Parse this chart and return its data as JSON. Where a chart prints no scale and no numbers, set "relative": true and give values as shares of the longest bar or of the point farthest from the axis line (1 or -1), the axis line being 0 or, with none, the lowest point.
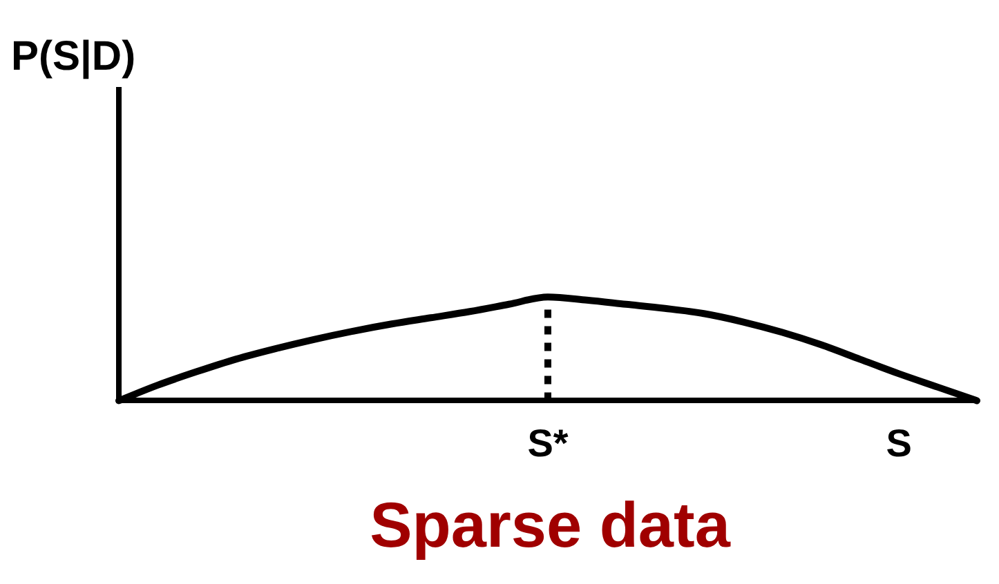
{
  "chart_data": {
    "type": "line",
    "title": "Sparse data",
    "annotations": [
      "P(S|D)"
    ],
    "relative": true,
    "categories": [
      null,
      null,
      null,
      null,
      null,
      null,
      null,
      null,
      null,
      null,
      null,
      "S*",
      null,
      null,
      null,
      null,
      null,
      null,
      null,
      null,
      "S",
      null,
      null
    ],
    "series": [
      {
        "color": "#000000",
        "values": [
          0,
          0.15,
          0.28,
          0.4,
          0.5,
          0.59,
          0.67,
          0.74,
          0.8,
          0.86,
          0.93,
          1,
          0.97,
          0.93,
          0.89,
          0.84,
          0.76,
          0.66,
          0.54,
          0.4,
          0.26,
          0.13,
          0
        ]
      }
    ],
    "ref_lines": [
      {
        "axis": "x",
        "value": "S*",
        "line_style": "dotted",
        "color": "#000000"
      }
    ],
    "marker": "none",
    "grid": false,
    "legend": false
  }
}
